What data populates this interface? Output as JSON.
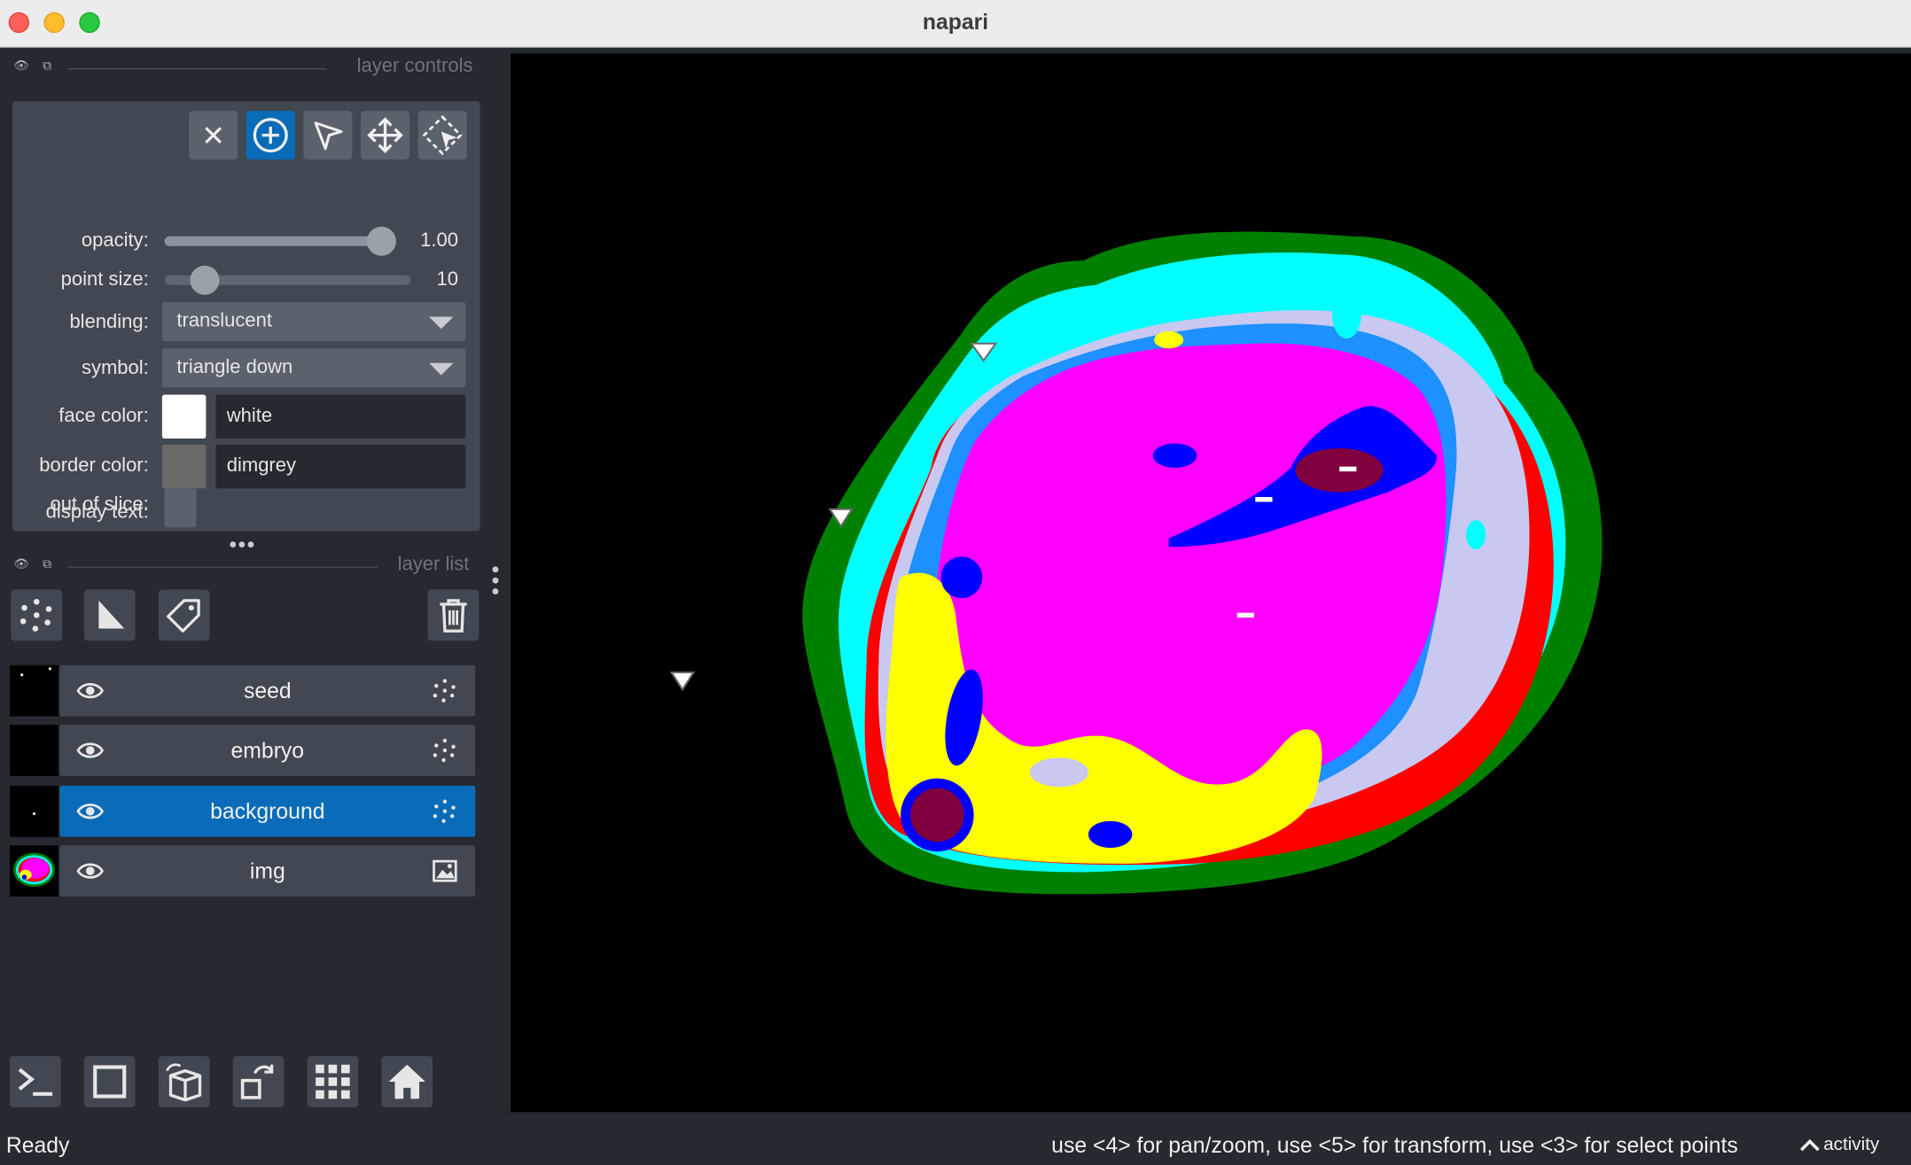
{
  "window": {
    "title": "napari"
  },
  "layer_controls": {
    "header": "layer controls",
    "mode_buttons": [
      "delete-selected",
      "add-points",
      "select-points",
      "pan-zoom",
      "transform"
    ],
    "active_mode": "add-points",
    "opacity": {
      "label": "opacity:",
      "value": "1.00",
      "fraction": 1.0
    },
    "point_size": {
      "label": "point size:",
      "value": "10",
      "fraction": 0.12
    },
    "blending": {
      "label": "blending:",
      "value": "translucent"
    },
    "symbol": {
      "label": "symbol:",
      "value": "triangle down"
    },
    "face_color": {
      "label": "face color:",
      "value": "white",
      "swatch": "#ffffff"
    },
    "border_color": {
      "label": "border color:",
      "value": "dimgrey",
      "swatch": "#696969"
    },
    "display_text": {
      "label": "display text:",
      "checked": true
    },
    "out_of_slice": {
      "label": "out of slice:",
      "checked": false
    }
  },
  "layer_list": {
    "header": "layer list",
    "tools": [
      "new-points-layer",
      "new-shapes-layer",
      "new-labels-layer",
      "delete-layer"
    ],
    "layers": [
      {
        "name": "seed",
        "type": "points-icon",
        "selected": false
      },
      {
        "name": "embryo",
        "type": "points-icon",
        "selected": false
      },
      {
        "name": "background",
        "type": "points-icon",
        "selected": true
      },
      {
        "name": "img",
        "type": "image-icon",
        "selected": false
      }
    ]
  },
  "bottom_tools": [
    "console-icon",
    "2d-3d-toggle-icon",
    "roll-dims-icon",
    "transpose-icon",
    "grid-icon",
    "home-icon"
  ],
  "status": {
    "left": "Ready",
    "hint": "use <4> for pan/zoom, use <5> for transform, use <3> for select points",
    "activity": "activity"
  },
  "colors": {
    "accent": "#0a6cb8",
    "panel": "#262930",
    "control": "#414851"
  }
}
